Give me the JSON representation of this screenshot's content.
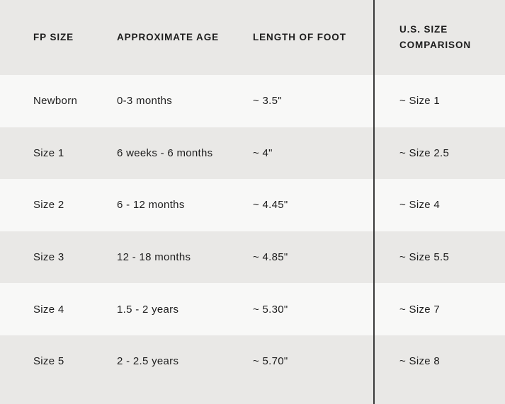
{
  "colors": {
    "row_light": "#f8f8f7",
    "row_dark": "#e9e8e6",
    "divider": "#3a3a3a",
    "text": "#1d1d1d"
  },
  "chart_data": {
    "type": "table",
    "columns": [
      "FP SIZE",
      "APPROXIMATE AGE",
      "LENGTH OF FOOT",
      "U.S. SIZE COMPARISON"
    ],
    "rows": [
      [
        "Newborn",
        "0-3 months",
        "~ 3.5\"",
        "~ Size 1"
      ],
      [
        "Size 1",
        "6 weeks - 6 months",
        "~ 4\"",
        "~ Size 2.5"
      ],
      [
        "Size 2",
        "6 - 12 months",
        "~ 4.45\"",
        "~ Size 4"
      ],
      [
        "Size 3",
        "12 - 18 months",
        "~ 4.85\"",
        "~ Size 5.5"
      ],
      [
        "Size 4",
        "1.5 - 2 years",
        "~ 5.30\"",
        "~ Size 7"
      ],
      [
        "Size 5",
        "2 - 2.5 years",
        "~ 5.70\"",
        "~ Size 8"
      ]
    ]
  }
}
